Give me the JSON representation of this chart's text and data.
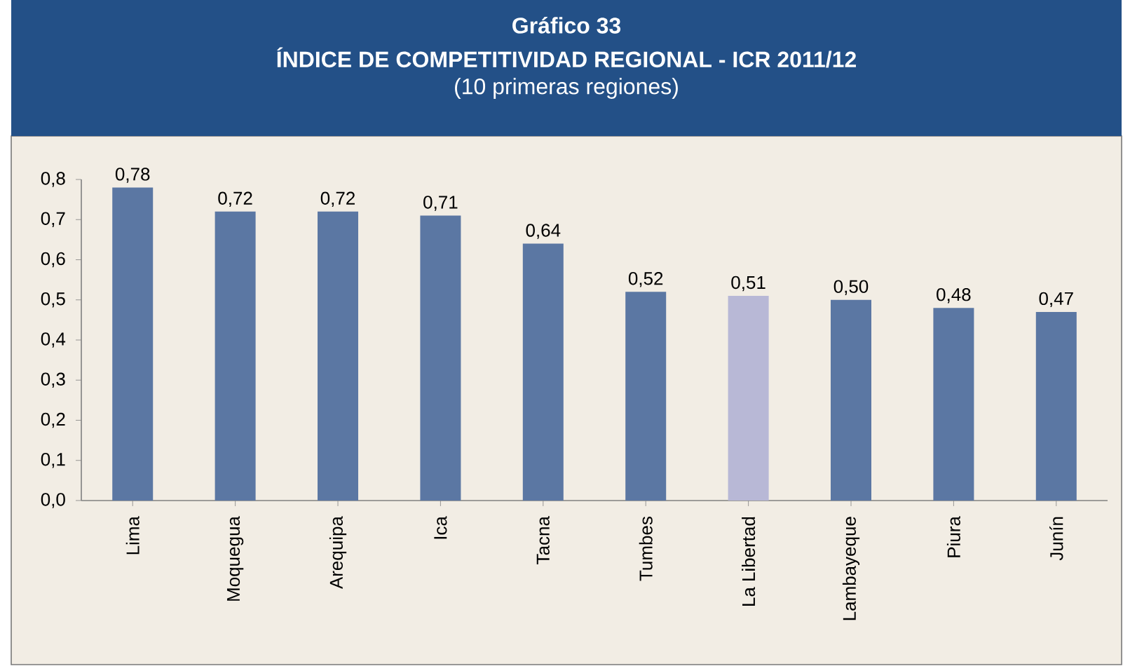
{
  "chart_data": {
    "type": "bar",
    "title": "Gráfico 33",
    "subtitle": "ÍNDICE DE COMPETITIVIDAD REGIONAL - ICR 2011/12",
    "annotations": [
      "(10 primeras regiones)"
    ],
    "categories": [
      "Lima",
      "Moquegua",
      "Arequipa",
      "Ica",
      "Tacna",
      "Tumbes",
      "La Libertad",
      "Lambayeque",
      "Piura",
      "Junín"
    ],
    "values": [
      0.78,
      0.72,
      0.72,
      0.71,
      0.64,
      0.52,
      0.51,
      0.5,
      0.48,
      0.47
    ],
    "value_labels": [
      "0,78",
      "0,72",
      "0,72",
      "0,71",
      "0,64",
      "0,52",
      "0,51",
      "0,50",
      "0,48",
      "0,47"
    ],
    "colors": [
      "#5b77a3",
      "#5b77a3",
      "#5b77a3",
      "#5b77a3",
      "#5b77a3",
      "#5b77a3",
      "#b8b8d6",
      "#5b77a3",
      "#5b77a3",
      "#5b77a3"
    ],
    "ylim": [
      0,
      0.8
    ],
    "yticks": [
      {
        "value": 0,
        "label": "0,0"
      },
      {
        "value": 0.1,
        "label": "0,1"
      },
      {
        "value": 0.2,
        "label": "0,2"
      },
      {
        "value": 0.3,
        "label": "0,3"
      },
      {
        "value": 0.4,
        "label": "0,4"
      },
      {
        "value": 0.5,
        "label": "0,5"
      },
      {
        "value": 0.6,
        "label": "0,6"
      },
      {
        "value": 0.7,
        "label": "0,7"
      },
      {
        "value": 0.8,
        "label": "0,8"
      }
    ],
    "grid": false
  }
}
